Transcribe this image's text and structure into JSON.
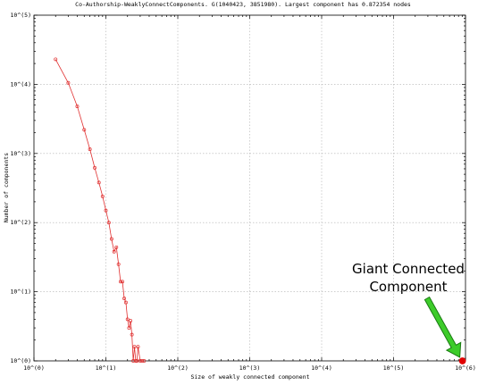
{
  "chart_data": {
    "type": "scatter",
    "title": "Co-Authorship-WeaklyConnectComponents. G(1040423, 3851980). Largest component has 0.872354 nodes",
    "xlabel": "Size of weakly connected component",
    "ylabel": "Number of components",
    "xscale": "log",
    "yscale": "log",
    "xlim": [
      1,
      1000000
    ],
    "ylim": [
      1,
      100000
    ],
    "grid": true,
    "x_tick_labels": [
      "10^(0)",
      "10^(1)",
      "10^(2)",
      "10^(3)",
      "10^(4)",
      "10^(5)",
      "10^(6)"
    ],
    "y_tick_labels": [
      "10^(0)",
      "10^(1)",
      "10^(2)",
      "10^(3)",
      "10^(4)",
      "10^(5)"
    ],
    "series": [
      {
        "color": "#e03030",
        "points": [
          [
            2,
            23000
          ],
          [
            3,
            10500
          ],
          [
            4,
            4800
          ],
          [
            5,
            2200
          ],
          [
            6,
            1150
          ],
          [
            7,
            620
          ],
          [
            8,
            380
          ],
          [
            9,
            240
          ],
          [
            10,
            150
          ],
          [
            11,
            100
          ],
          [
            12,
            58
          ],
          [
            13,
            38
          ],
          [
            14,
            44
          ],
          [
            15,
            25
          ],
          [
            16,
            14
          ],
          [
            17,
            14
          ],
          [
            18,
            8
          ],
          [
            19,
            7
          ],
          [
            20,
            4
          ],
          [
            21,
            3
          ],
          [
            22,
            3.8
          ],
          [
            23,
            2.4
          ],
          [
            24,
            1
          ],
          [
            25,
            1.6
          ],
          [
            26,
            1
          ],
          [
            27,
            1
          ],
          [
            28,
            1.6
          ],
          [
            30,
            1
          ],
          [
            32,
            1
          ],
          [
            34,
            1
          ]
        ]
      },
      {
        "color": "#e00000",
        "points": [
          [
            907600,
            1
          ]
        ]
      }
    ],
    "annotation": {
      "text_line1": "Giant Connected",
      "text_line2": "Component",
      "arrow_color": "#3dcc2a"
    }
  }
}
